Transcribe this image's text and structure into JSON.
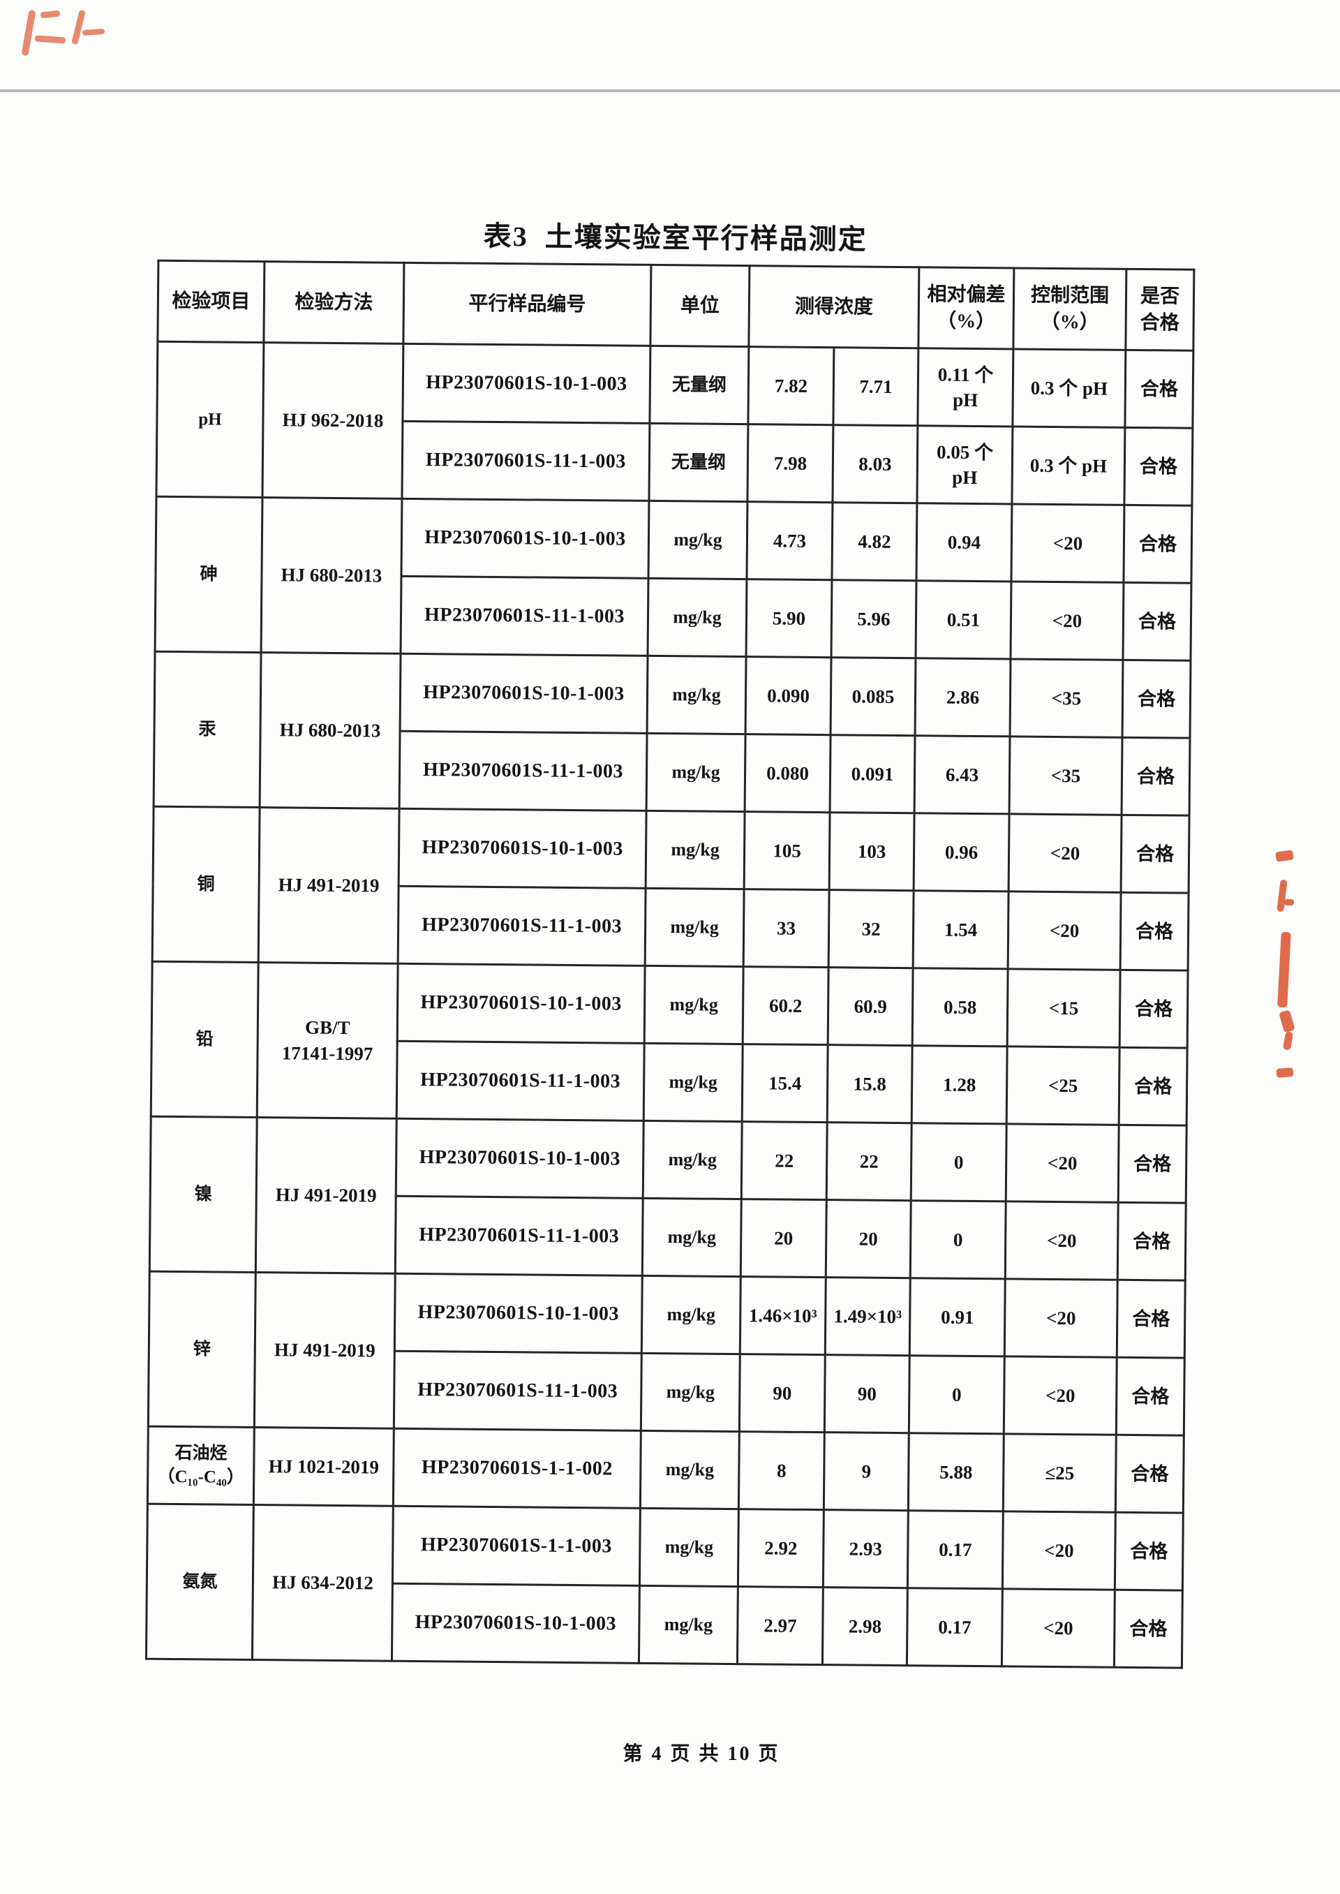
{
  "page": {
    "title": "表3  土壤实验室平行样品测定",
    "footer": "第 4 页 共 10 页"
  },
  "colors": {
    "stamp_red": "#e06b4a",
    "top_rule_gray": "#b2b8b8",
    "table_border": "#242424"
  },
  "table": {
    "headers": {
      "item": "检验项目",
      "method": "检验方法",
      "sample_id": "平行样品编号",
      "unit": "单位",
      "concentration": "测得浓度",
      "relative_deviation": "相对偏差\n（%）",
      "control_range": "控制范围\n（%）",
      "qualified": "是否\n合格"
    },
    "groups": [
      {
        "item": "pH",
        "method": "HJ 962-2018",
        "rows": [
          {
            "sample": "HP23070601S-10-1-003",
            "unit": "无量纲",
            "c1": "7.82",
            "c2": "7.71",
            "dev": "0.11 个\npH",
            "range": "0.3 个 pH",
            "pass": "合格"
          },
          {
            "sample": "HP23070601S-11-1-003",
            "unit": "无量纲",
            "c1": "7.98",
            "c2": "8.03",
            "dev": "0.05 个\npH",
            "range": "0.3 个 pH",
            "pass": "合格"
          }
        ]
      },
      {
        "item": "砷",
        "method": "HJ 680-2013",
        "rows": [
          {
            "sample": "HP23070601S-10-1-003",
            "unit": "mg/kg",
            "c1": "4.73",
            "c2": "4.82",
            "dev": "0.94",
            "range": "<20",
            "pass": "合格"
          },
          {
            "sample": "HP23070601S-11-1-003",
            "unit": "mg/kg",
            "c1": "5.90",
            "c2": "5.96",
            "dev": "0.51",
            "range": "<20",
            "pass": "合格"
          }
        ]
      },
      {
        "item": "汞",
        "method": "HJ 680-2013",
        "rows": [
          {
            "sample": "HP23070601S-10-1-003",
            "unit": "mg/kg",
            "c1": "0.090",
            "c2": "0.085",
            "dev": "2.86",
            "range": "<35",
            "pass": "合格"
          },
          {
            "sample": "HP23070601S-11-1-003",
            "unit": "mg/kg",
            "c1": "0.080",
            "c2": "0.091",
            "dev": "6.43",
            "range": "<35",
            "pass": "合格"
          }
        ]
      },
      {
        "item": "铜",
        "method": "HJ 491-2019",
        "rows": [
          {
            "sample": "HP23070601S-10-1-003",
            "unit": "mg/kg",
            "c1": "105",
            "c2": "103",
            "dev": "0.96",
            "range": "<20",
            "pass": "合格"
          },
          {
            "sample": "HP23070601S-11-1-003",
            "unit": "mg/kg",
            "c1": "33",
            "c2": "32",
            "dev": "1.54",
            "range": "<20",
            "pass": "合格"
          }
        ]
      },
      {
        "item": "铅",
        "method": "GB/T\n17141-1997",
        "rows": [
          {
            "sample": "HP23070601S-10-1-003",
            "unit": "mg/kg",
            "c1": "60.2",
            "c2": "60.9",
            "dev": "0.58",
            "range": "<15",
            "pass": "合格"
          },
          {
            "sample": "HP23070601S-11-1-003",
            "unit": "mg/kg",
            "c1": "15.4",
            "c2": "15.8",
            "dev": "1.28",
            "range": "<25",
            "pass": "合格"
          }
        ]
      },
      {
        "item": "镍",
        "method": "HJ 491-2019",
        "rows": [
          {
            "sample": "HP23070601S-10-1-003",
            "unit": "mg/kg",
            "c1": "22",
            "c2": "22",
            "dev": "0",
            "range": "<20",
            "pass": "合格"
          },
          {
            "sample": "HP23070601S-11-1-003",
            "unit": "mg/kg",
            "c1": "20",
            "c2": "20",
            "dev": "0",
            "range": "<20",
            "pass": "合格"
          }
        ]
      },
      {
        "item": "锌",
        "method": "HJ 491-2019",
        "rows": [
          {
            "sample": "HP23070601S-10-1-003",
            "unit": "mg/kg",
            "c1": "1.46×10³",
            "c2": "1.49×10³",
            "dev": "0.91",
            "range": "<20",
            "pass": "合格"
          },
          {
            "sample": "HP23070601S-11-1-003",
            "unit": "mg/kg",
            "c1": "90",
            "c2": "90",
            "dev": "0",
            "range": "<20",
            "pass": "合格"
          }
        ]
      },
      {
        "item": "石油烃\n（C₁₀-C₄₀）",
        "method": "HJ 1021-2019",
        "rows": [
          {
            "sample": "HP23070601S-1-1-002",
            "unit": "mg/kg",
            "c1": "8",
            "c2": "9",
            "dev": "5.88",
            "range": "≤25",
            "pass": "合格"
          }
        ]
      },
      {
        "item": "氨氮",
        "method": "HJ 634-2012",
        "rows": [
          {
            "sample": "HP23070601S-1-1-003",
            "unit": "mg/kg",
            "c1": "2.92",
            "c2": "2.93",
            "dev": "0.17",
            "range": "<20",
            "pass": "合格"
          },
          {
            "sample": "HP23070601S-10-1-003",
            "unit": "mg/kg",
            "c1": "2.97",
            "c2": "2.98",
            "dev": "0.17",
            "range": "<20",
            "pass": "合格"
          }
        ]
      }
    ]
  }
}
